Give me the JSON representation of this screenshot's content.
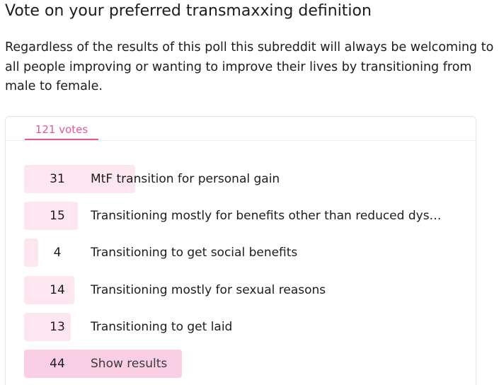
{
  "post": {
    "title": "Vote on your preferred transmaxxing definition",
    "body": "Regardless of the results of this poll this subreddit will always be welcoming to all people improving or wanting to improve their lives by transitioning from male to female."
  },
  "poll": {
    "total_votes": "121 votes",
    "options": [
      {
        "votes": 31,
        "label": "MtF transition for personal gain"
      },
      {
        "votes": 15,
        "label": "Transitioning mostly for benefits other than reduced dys…"
      },
      {
        "votes": 4,
        "label": "Transitioning to get social benefits"
      },
      {
        "votes": 14,
        "label": "Transitioning mostly for sexual reasons"
      },
      {
        "votes": 13,
        "label": "Transitioning to get laid"
      },
      {
        "votes": 44,
        "label": "Show results"
      }
    ]
  }
}
